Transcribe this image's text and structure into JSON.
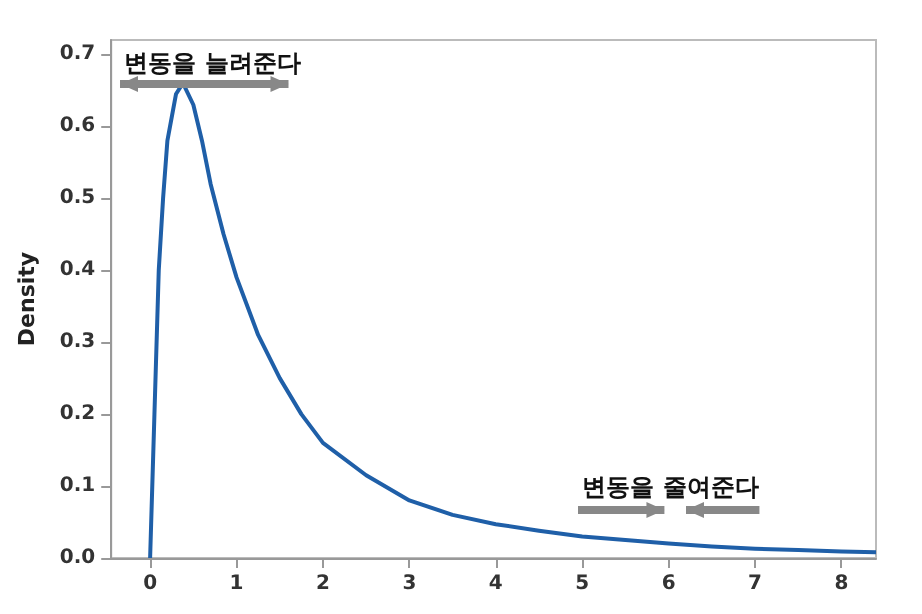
{
  "chart_data": {
    "type": "line",
    "ylabel": "Density",
    "annotations": [
      "변동을 늘려준다",
      "변동을 줄여준다"
    ],
    "series": [
      {
        "color": "#1f5fa8",
        "x": [
          0,
          0.05,
          0.1,
          0.15,
          0.2,
          0.3,
          0.38,
          0.5,
          0.6,
          0.7,
          0.85,
          1.0,
          1.25,
          1.5,
          1.75,
          2.0,
          2.5,
          3.0,
          3.5,
          4.0,
          4.5,
          5.0,
          5.5,
          6.0,
          6.5,
          7.0,
          7.5,
          8.0,
          8.4
        ],
        "values": [
          0,
          0.2,
          0.4,
          0.5,
          0.58,
          0.645,
          0.66,
          0.63,
          0.58,
          0.52,
          0.45,
          0.39,
          0.31,
          0.25,
          0.2,
          0.16,
          0.115,
          0.08,
          0.06,
          0.047,
          0.038,
          0.03,
          0.025,
          0.02,
          0.016,
          0.013,
          0.011,
          0.009,
          0.008
        ]
      }
    ],
    "xlim": [
      -0.45,
      8.4
    ],
    "xticks": [
      0,
      1,
      2,
      3,
      4,
      5,
      6,
      7,
      8
    ],
    "ylim": [
      0,
      0.72
    ],
    "yticks": [
      {
        "value": 0,
        "label": "0.0"
      },
      0.1,
      0.2,
      0.3,
      0.4,
      0.5,
      0.6,
      0.7
    ],
    "grid": false,
    "marker": "none",
    "line_style": "solid"
  }
}
